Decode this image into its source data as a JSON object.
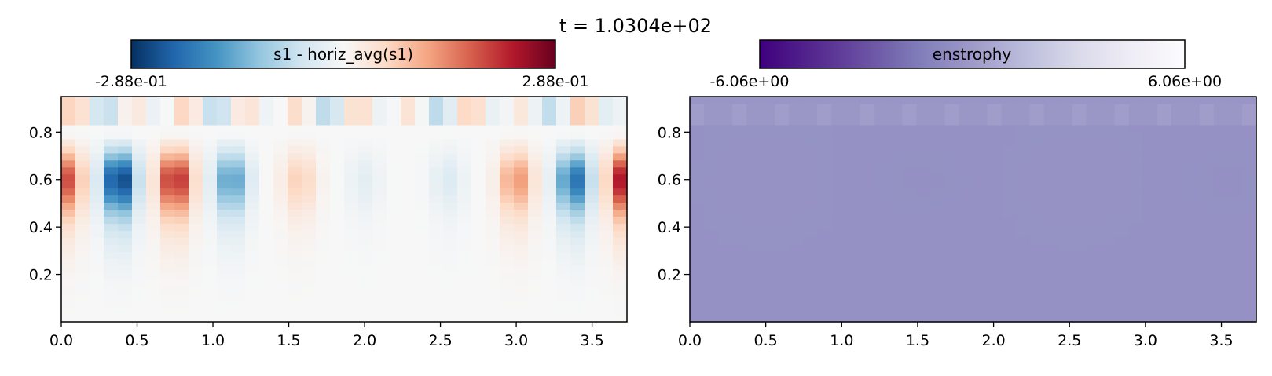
{
  "title": "t = 1.0304e+02",
  "chart_data": [
    {
      "type": "heatmap",
      "colormap": "RdBu_r",
      "colorbar": {
        "label": "s1 - horiz_avg(s1)",
        "min_label": "-2.88e-01",
        "max_label": "2.88e-01",
        "range": [
          -0.288,
          0.288
        ],
        "colors": [
          "#053061",
          "#2166ac",
          "#4393c3",
          "#92c5de",
          "#d1e5f0",
          "#f7f7f7",
          "#fddbc7",
          "#f4a582",
          "#d6604d",
          "#b2182b",
          "#67001f"
        ]
      },
      "xlim": [
        0,
        3.73
      ],
      "ylim": [
        0,
        0.95
      ],
      "xticks": [
        "0.0",
        "0.5",
        "1.0",
        "1.5",
        "2.0",
        "2.5",
        "3.0",
        "3.5"
      ],
      "yticks": [
        "0.2",
        "0.4",
        "0.6",
        "0.8"
      ],
      "grid": {
        "nx": 40,
        "ny": 32,
        "modes": [
          {
            "x_center": 0.03,
            "amplitude": 0.19
          },
          {
            "x_center": 0.38,
            "amplitude": -0.288
          },
          {
            "x_center": 0.75,
            "amplitude": 0.23
          },
          {
            "x_center": 1.12,
            "amplitude": -0.17
          },
          {
            "x_center": 1.57,
            "amplitude": 0.07
          },
          {
            "x_center": 2.0,
            "amplitude": -0.03
          },
          {
            "x_center": 2.55,
            "amplitude": -0.04
          },
          {
            "x_center": 3.0,
            "amplitude": 0.13
          },
          {
            "x_center": 3.38,
            "amplitude": -0.22
          },
          {
            "x_center": 3.72,
            "amplitude": 0.26
          }
        ],
        "peak_y": 0.6,
        "y_spread": 0.12
      }
    },
    {
      "type": "heatmap",
      "colormap": "Purples_r",
      "colorbar": {
        "label": "enstrophy",
        "min_label": "-6.06e+00",
        "max_label": "6.06e+00",
        "range": [
          -6.06,
          6.06
        ],
        "colors": [
          "#3f007d",
          "#54278f",
          "#6a51a3",
          "#807dba",
          "#9e9ac8",
          "#bcbddc",
          "#dadaeb",
          "#efedf5",
          "#fcfbfd"
        ]
      },
      "xlim": [
        0,
        3.73
      ],
      "ylim": [
        0,
        0.95
      ],
      "xticks": [
        "0.0",
        "0.5",
        "1.0",
        "1.5",
        "2.0",
        "2.5",
        "3.0",
        "3.5"
      ],
      "yticks": [
        "0.2",
        "0.4",
        "0.6",
        "0.8"
      ],
      "grid": {
        "nx": 40,
        "ny": 32,
        "base_value": -0.45,
        "top_band_value": 0.6
      }
    }
  ]
}
